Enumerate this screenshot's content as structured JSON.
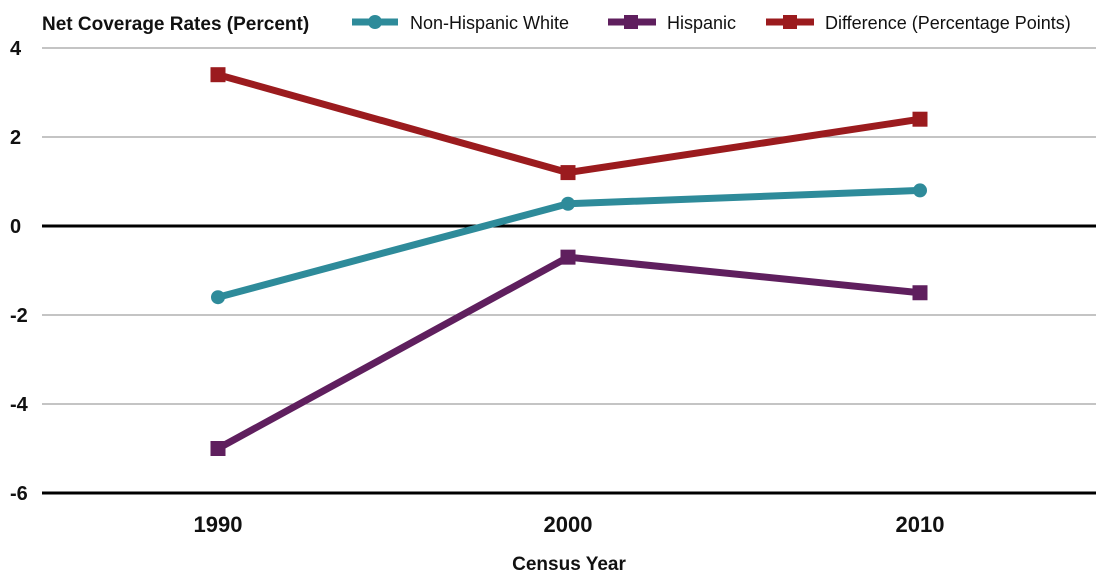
{
  "chart_data": {
    "type": "line",
    "title": "Net Coverage Rates (Percent)",
    "xlabel": "Census Year",
    "ylabel": "",
    "categories": [
      "1990",
      "2000",
      "2010"
    ],
    "ylim": [
      -6,
      4
    ],
    "yticks": [
      "4",
      "2",
      "0",
      "-2",
      "-4",
      "-6"
    ],
    "ytick_values": [
      4,
      2,
      0,
      -2,
      -4,
      -6
    ],
    "grid": true,
    "legend_position": "top",
    "series": [
      {
        "name": "Non-Hispanic White",
        "values": [
          -1.6,
          0.5,
          0.8
        ],
        "color": "#2E8B9A",
        "marker": "circle"
      },
      {
        "name": "Hispanic",
        "values": [
          -5.0,
          -0.7,
          -1.5
        ],
        "color": "#5F1F5E",
        "marker": "square"
      },
      {
        "name": "Difference (Percentage Points)",
        "values": [
          3.4,
          1.2,
          2.4
        ],
        "color": "#9B1B1E",
        "marker": "square"
      }
    ]
  }
}
